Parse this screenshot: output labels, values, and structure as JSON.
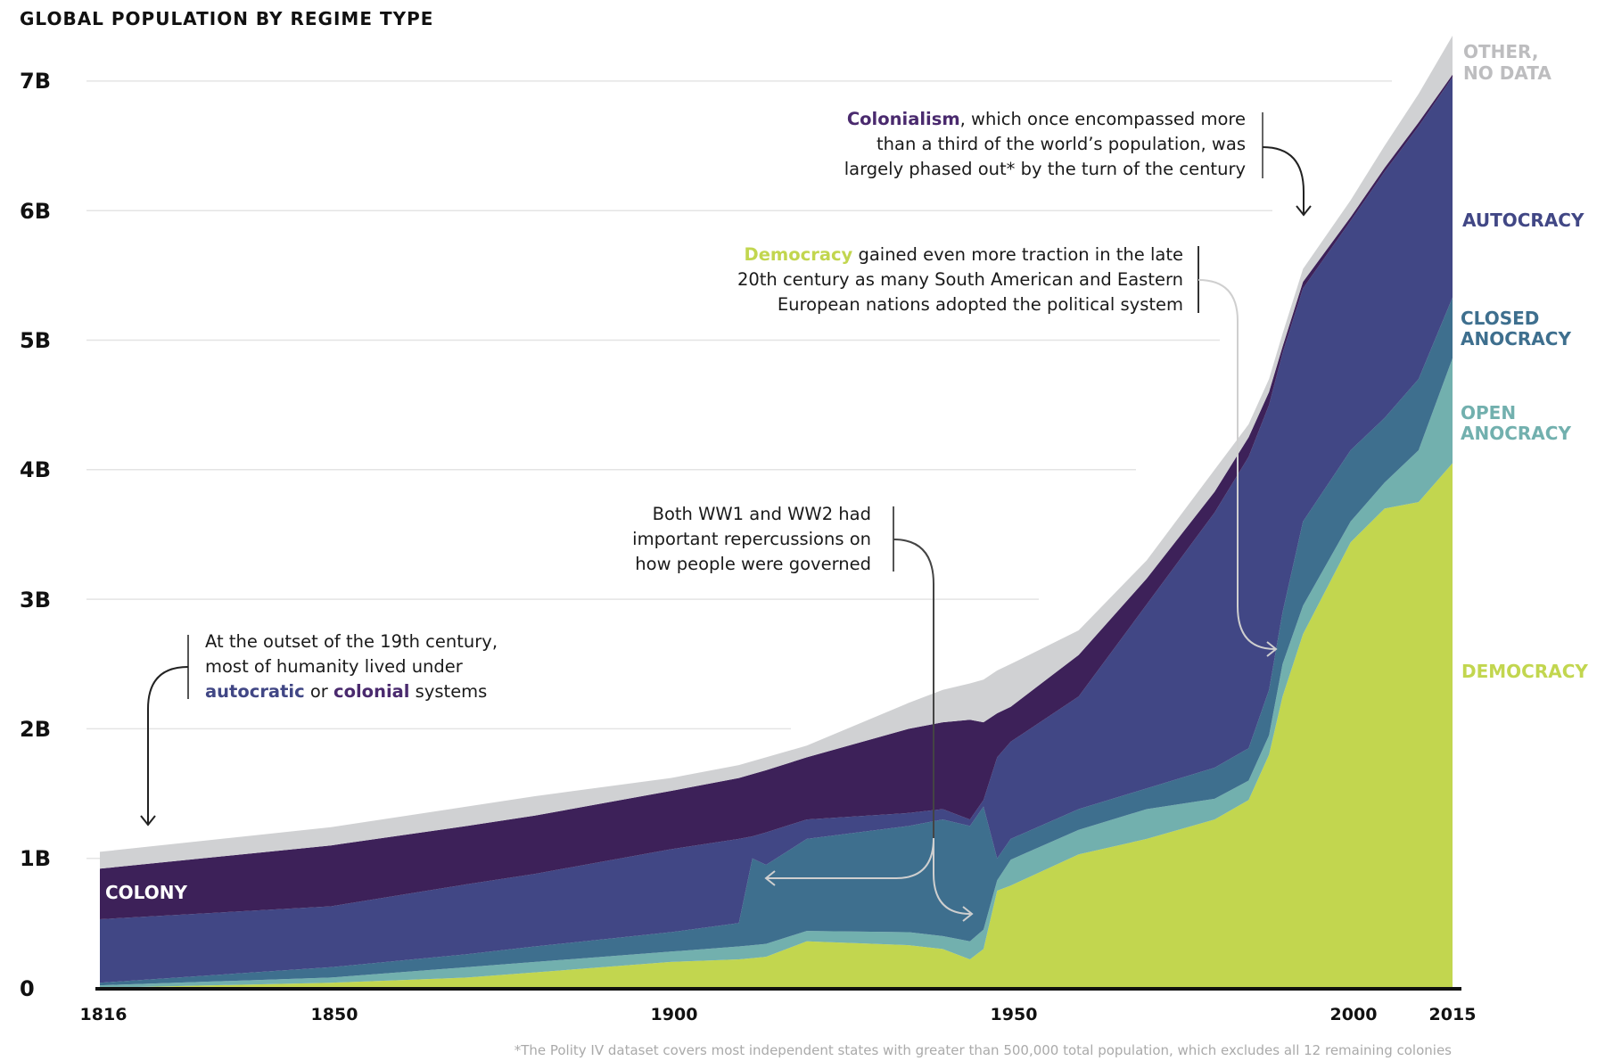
{
  "chart_data": {
    "type": "area",
    "stacked": true,
    "title": "GLOBAL POPULATION BY REGIME TYPE",
    "xlabel": "",
    "ylabel": "",
    "xlim": [
      1816,
      2015
    ],
    "ylim": [
      0,
      7
    ],
    "x_ticks": [
      "1816",
      "1850",
      "1900",
      "1950",
      "2000",
      "2015"
    ],
    "x_tick_values": [
      1816,
      1850,
      1900,
      1950,
      2000,
      2015
    ],
    "y_ticks": [
      "0",
      "1B",
      "2B",
      "3B",
      "4B",
      "5B",
      "6B",
      "7B"
    ],
    "y_tick_values": [
      0,
      1,
      2,
      3,
      4,
      5,
      6,
      7
    ],
    "y_unit": "billions",
    "grid": "horizontal",
    "legend": "right, direct labels",
    "x": [
      1816,
      1850,
      1870,
      1880,
      1900,
      1910,
      1912,
      1914,
      1920,
      1935,
      1940,
      1944,
      1946,
      1948,
      1950,
      1960,
      1970,
      1980,
      1985,
      1988,
      1990,
      1993,
      2000,
      2005,
      2010,
      2015
    ],
    "series": [
      {
        "name": "DEMOCRACY",
        "color": "#c2d64f",
        "values": [
          0,
          0.04,
          0.08,
          0.12,
          0.2,
          0.22,
          0.23,
          0.24,
          0.36,
          0.33,
          0.3,
          0.22,
          0.3,
          0.75,
          0.79,
          1.03,
          1.15,
          1.3,
          1.45,
          1.8,
          2.25,
          2.73,
          3.44,
          3.7,
          3.75,
          4.05
        ]
      },
      {
        "name": "OPEN ANOCRACY",
        "color": "#72b0ae",
        "values": [
          0.02,
          0.04,
          0.08,
          0.08,
          0.08,
          0.1,
          0.1,
          0.1,
          0.08,
          0.1,
          0.1,
          0.14,
          0.15,
          0.08,
          0.2,
          0.19,
          0.23,
          0.16,
          0.15,
          0.15,
          0.25,
          0.22,
          0.16,
          0.2,
          0.4,
          0.81
        ]
      },
      {
        "name": "CLOSED ANOCRACY",
        "color": "#3e6f8e",
        "values": [
          0.02,
          0.08,
          0.1,
          0.12,
          0.15,
          0.18,
          0.67,
          0.61,
          0.71,
          0.82,
          0.9,
          0.89,
          0.95,
          0.17,
          0.16,
          0.16,
          0.16,
          0.24,
          0.25,
          0.35,
          0.4,
          0.65,
          0.55,
          0.5,
          0.55,
          0.47
        ]
      },
      {
        "name": "AUTOCRACY",
        "color": "#414785",
        "values": [
          0.49,
          0.47,
          0.54,
          0.56,
          0.64,
          0.65,
          0.17,
          0.25,
          0.15,
          0.1,
          0.08,
          0.05,
          0.05,
          0.78,
          0.75,
          0.87,
          1.42,
          1.97,
          2.25,
          2.2,
          2.0,
          1.8,
          1.77,
          1.9,
          1.95,
          1.7
        ]
      },
      {
        "name": "COLONY",
        "color": "#3d2159",
        "values": [
          0.39,
          0.47,
          0.45,
          0.45,
          0.45,
          0.47,
          0.48,
          0.48,
          0.48,
          0.65,
          0.67,
          0.77,
          0.6,
          0.34,
          0.27,
          0.32,
          0.2,
          0.16,
          0.15,
          0.1,
          0.05,
          0.05,
          0.03,
          0.03,
          0.03,
          0.02
        ]
      },
      {
        "name": "OTHER, NO DATA",
        "color": "#d0d1d3",
        "values": [
          0.13,
          0.14,
          0.15,
          0.15,
          0.1,
          0.1,
          0.1,
          0.1,
          0.09,
          0.2,
          0.25,
          0.28,
          0.33,
          0.33,
          0.33,
          0.19,
          0.14,
          0.17,
          0.1,
          0.1,
          0.1,
          0.1,
          0.13,
          0.17,
          0.22,
          0.3
        ]
      }
    ],
    "series_labels": {
      "other_line1": "OTHER,",
      "other_line2": "NO DATA",
      "autocracy": "AUTOCRACY",
      "closed_line1": "CLOSED",
      "closed_line2": "ANOCRACY",
      "open_line1": "OPEN",
      "open_line2": "ANOCRACY",
      "democracy": "DEMOCRACY",
      "colony": "COLONY"
    },
    "annotations": {
      "colonialism": {
        "highlight": "Colonialism",
        "line1_rest": ", which once encompassed more",
        "line2": "than a third of the world’s population, was",
        "line3": "largely phased out* by the turn of the century"
      },
      "democracy": {
        "highlight": "Democracy",
        "line1_rest": " gained even more traction in the late",
        "line2": "20th century as many South American and Eastern",
        "line3": "European nations adopted the political system"
      },
      "wars": {
        "line1": "Both WW1 and WW2 had",
        "line2": "important repercussions on",
        "line3": "how people were governed"
      },
      "outset": {
        "line1": "At the outset of the 19th century,",
        "line2": "most of humanity lived under",
        "autocratic": "autocratic",
        "or": " or ",
        "colonial": "colonial",
        "systems": " systems"
      }
    },
    "footnote": "*The Polity IV dataset covers most independent states with greater than 500,000 total population, which excludes all 12 remaining colonies"
  }
}
